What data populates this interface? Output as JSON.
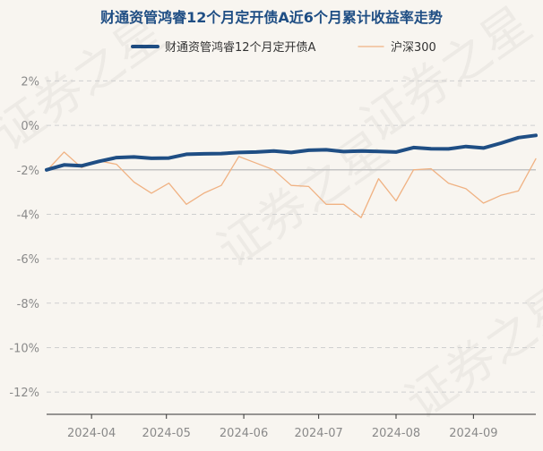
{
  "chart_data": {
    "type": "line",
    "title": "财通资管鸿睿12个月定开债A近6个月累计收益率走势",
    "legend_position": "top",
    "x_ticks": [
      "2024-04",
      "2024-05",
      "2024-06",
      "2024-07",
      "2024-08",
      "2024-09"
    ],
    "y_ticks": [
      "2%",
      "0%",
      "-2%",
      "-4%",
      "-6%",
      "-8%",
      "-10%",
      "-12%"
    ],
    "ylim": [
      -13.0,
      2.5
    ],
    "grid": "horizontal dashed",
    "reference_line": -2,
    "series": [
      {
        "name": "财通资管鸿睿12个月定开债A",
        "color": "#1f4e84",
        "points": [
          [
            "2024-03-14",
            -2.0
          ],
          [
            "2024-03-21",
            -1.78
          ],
          [
            "2024-03-28",
            -1.82
          ],
          [
            "2024-04-04",
            -1.62
          ],
          [
            "2024-04-11",
            -1.45
          ],
          [
            "2024-04-18",
            -1.42
          ],
          [
            "2024-04-25",
            -1.48
          ],
          [
            "2024-05-02",
            -1.47
          ],
          [
            "2024-05-09",
            -1.3
          ],
          [
            "2024-05-16",
            -1.28
          ],
          [
            "2024-05-23",
            -1.27
          ],
          [
            "2024-05-30",
            -1.22
          ],
          [
            "2024-06-06",
            -1.2
          ],
          [
            "2024-06-13",
            -1.15
          ],
          [
            "2024-06-20",
            -1.22
          ],
          [
            "2024-06-27",
            -1.12
          ],
          [
            "2024-07-04",
            -1.1
          ],
          [
            "2024-07-11",
            -1.18
          ],
          [
            "2024-07-18",
            -1.15
          ],
          [
            "2024-07-25",
            -1.17
          ],
          [
            "2024-08-01",
            -1.2
          ],
          [
            "2024-08-08",
            -1.0
          ],
          [
            "2024-08-15",
            -1.05
          ],
          [
            "2024-08-22",
            -1.06
          ],
          [
            "2024-08-29",
            -0.95
          ],
          [
            "2024-09-05",
            -1.02
          ],
          [
            "2024-09-12",
            -0.8
          ],
          [
            "2024-09-19",
            -0.55
          ],
          [
            "2024-09-26",
            -0.45
          ]
        ]
      },
      {
        "name": "沪深300",
        "color": "#f0b283",
        "points": [
          [
            "2024-03-14",
            -2.05
          ],
          [
            "2024-03-21",
            -1.2
          ],
          [
            "2024-03-28",
            -1.9
          ],
          [
            "2024-04-04",
            -1.6
          ],
          [
            "2024-04-11",
            -1.75
          ],
          [
            "2024-04-18",
            -2.55
          ],
          [
            "2024-04-25",
            -3.05
          ],
          [
            "2024-05-02",
            -2.6
          ],
          [
            "2024-05-09",
            -3.55
          ],
          [
            "2024-05-16",
            -3.05
          ],
          [
            "2024-05-23",
            -2.7
          ],
          [
            "2024-05-30",
            -1.4
          ],
          [
            "2024-06-06",
            -1.7
          ],
          [
            "2024-06-13",
            -2.0
          ],
          [
            "2024-06-20",
            -2.7
          ],
          [
            "2024-06-27",
            -2.75
          ],
          [
            "2024-07-04",
            -3.55
          ],
          [
            "2024-07-11",
            -3.55
          ],
          [
            "2024-07-18",
            -4.15
          ],
          [
            "2024-07-25",
            -2.4
          ],
          [
            "2024-08-01",
            -3.4
          ],
          [
            "2024-08-08",
            -2.0
          ],
          [
            "2024-08-15",
            -1.95
          ],
          [
            "2024-08-22",
            -2.6
          ],
          [
            "2024-08-29",
            -2.85
          ],
          [
            "2024-09-05",
            -3.5
          ],
          [
            "2024-09-12",
            -3.15
          ],
          [
            "2024-09-19",
            -2.95
          ],
          [
            "2024-09-26",
            -1.5
          ]
        ]
      }
    ]
  }
}
